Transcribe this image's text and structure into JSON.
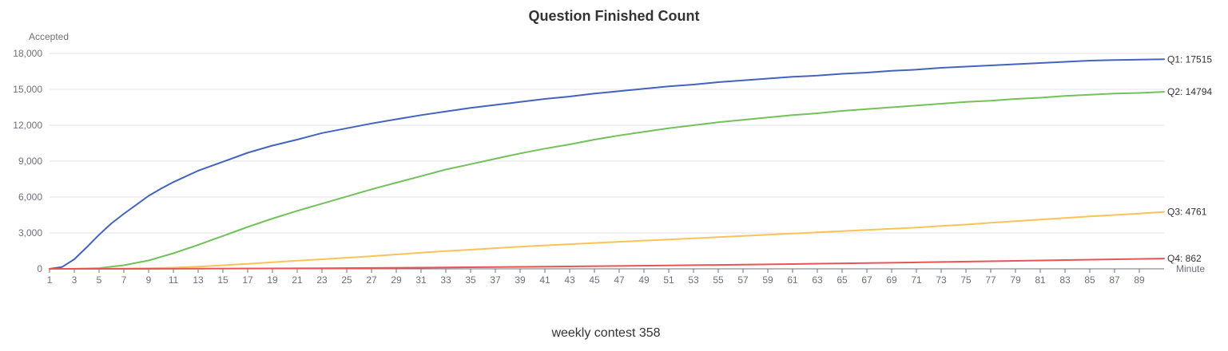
{
  "chart_data": {
    "type": "line",
    "title": "Question Finished Count",
    "ylabel": "Accepted",
    "xlabel": "Minute",
    "ylim": [
      0,
      18000
    ],
    "xlim": [
      1,
      91
    ],
    "y_ticks": [
      "0",
      "3,000",
      "6,000",
      "9,000",
      "12,000",
      "15,000",
      "18,000"
    ],
    "x_ticks": [
      "1",
      "3",
      "5",
      "7",
      "9",
      "11",
      "13",
      "15",
      "17",
      "19",
      "21",
      "23",
      "25",
      "27",
      "29",
      "31",
      "33",
      "35",
      "37",
      "39",
      "41",
      "43",
      "45",
      "47",
      "49",
      "51",
      "53",
      "55",
      "57",
      "59",
      "61",
      "63",
      "65",
      "67",
      "69",
      "71",
      "73",
      "75",
      "77",
      "79",
      "81",
      "83",
      "85",
      "87",
      "89"
    ],
    "grid": true,
    "series": [
      {
        "name": "Q1",
        "end_label": "Q1: 17515",
        "color": "#4363bf",
        "points": [
          [
            1,
            0
          ],
          [
            2,
            150
          ],
          [
            3,
            800
          ],
          [
            4,
            1800
          ],
          [
            5,
            2850
          ],
          [
            6,
            3800
          ],
          [
            7,
            4600
          ],
          [
            8,
            5350
          ],
          [
            9,
            6100
          ],
          [
            10,
            6700
          ],
          [
            11,
            7250
          ],
          [
            13,
            8200
          ],
          [
            15,
            8950
          ],
          [
            17,
            9700
          ],
          [
            19,
            10300
          ],
          [
            21,
            10800
          ],
          [
            23,
            11350
          ],
          [
            25,
            11750
          ],
          [
            27,
            12150
          ],
          [
            29,
            12500
          ],
          [
            31,
            12850
          ],
          [
            33,
            13150
          ],
          [
            35,
            13450
          ],
          [
            37,
            13700
          ],
          [
            39,
            13950
          ],
          [
            41,
            14200
          ],
          [
            43,
            14400
          ],
          [
            45,
            14650
          ],
          [
            47,
            14850
          ],
          [
            49,
            15050
          ],
          [
            51,
            15250
          ],
          [
            53,
            15400
          ],
          [
            55,
            15600
          ],
          [
            57,
            15750
          ],
          [
            59,
            15900
          ],
          [
            61,
            16050
          ],
          [
            63,
            16150
          ],
          [
            65,
            16300
          ],
          [
            67,
            16400
          ],
          [
            69,
            16550
          ],
          [
            71,
            16650
          ],
          [
            73,
            16800
          ],
          [
            75,
            16900
          ],
          [
            77,
            17000
          ],
          [
            79,
            17100
          ],
          [
            81,
            17200
          ],
          [
            83,
            17300
          ],
          [
            85,
            17400
          ],
          [
            87,
            17450
          ],
          [
            89,
            17480
          ],
          [
            91,
            17515
          ]
        ]
      },
      {
        "name": "Q2",
        "end_label": "Q2: 14794",
        "color": "#72c15b",
        "points": [
          [
            1,
            0
          ],
          [
            3,
            10
          ],
          [
            5,
            60
          ],
          [
            7,
            300
          ],
          [
            9,
            700
          ],
          [
            11,
            1300
          ],
          [
            13,
            2000
          ],
          [
            15,
            2750
          ],
          [
            17,
            3500
          ],
          [
            19,
            4200
          ],
          [
            21,
            4850
          ],
          [
            23,
            5450
          ],
          [
            25,
            6050
          ],
          [
            27,
            6650
          ],
          [
            29,
            7200
          ],
          [
            31,
            7750
          ],
          [
            33,
            8300
          ],
          [
            35,
            8750
          ],
          [
            37,
            9200
          ],
          [
            39,
            9650
          ],
          [
            41,
            10050
          ],
          [
            43,
            10400
          ],
          [
            45,
            10800
          ],
          [
            47,
            11150
          ],
          [
            49,
            11450
          ],
          [
            51,
            11750
          ],
          [
            53,
            12000
          ],
          [
            55,
            12250
          ],
          [
            57,
            12450
          ],
          [
            59,
            12650
          ],
          [
            61,
            12850
          ],
          [
            63,
            13000
          ],
          [
            65,
            13200
          ],
          [
            67,
            13350
          ],
          [
            69,
            13500
          ],
          [
            71,
            13650
          ],
          [
            73,
            13800
          ],
          [
            75,
            13950
          ],
          [
            77,
            14050
          ],
          [
            79,
            14200
          ],
          [
            81,
            14300
          ],
          [
            83,
            14450
          ],
          [
            85,
            14550
          ],
          [
            87,
            14650
          ],
          [
            89,
            14700
          ],
          [
            91,
            14794
          ]
        ]
      },
      {
        "name": "Q3",
        "end_label": "Q3: 4761",
        "color": "#f9c358",
        "points": [
          [
            1,
            0
          ],
          [
            5,
            5
          ],
          [
            9,
            50
          ],
          [
            11,
            100
          ],
          [
            13,
            180
          ],
          [
            15,
            300
          ],
          [
            17,
            420
          ],
          [
            19,
            550
          ],
          [
            21,
            680
          ],
          [
            23,
            800
          ],
          [
            25,
            930
          ],
          [
            27,
            1060
          ],
          [
            29,
            1200
          ],
          [
            31,
            1350
          ],
          [
            33,
            1480
          ],
          [
            35,
            1600
          ],
          [
            37,
            1730
          ],
          [
            39,
            1850
          ],
          [
            41,
            1960
          ],
          [
            43,
            2060
          ],
          [
            45,
            2160
          ],
          [
            47,
            2260
          ],
          [
            49,
            2360
          ],
          [
            51,
            2450
          ],
          [
            53,
            2550
          ],
          [
            55,
            2650
          ],
          [
            57,
            2750
          ],
          [
            59,
            2850
          ],
          [
            61,
            2950
          ],
          [
            63,
            3050
          ],
          [
            65,
            3150
          ],
          [
            67,
            3250
          ],
          [
            69,
            3350
          ],
          [
            71,
            3450
          ],
          [
            73,
            3580
          ],
          [
            75,
            3700
          ],
          [
            77,
            3850
          ],
          [
            79,
            3980
          ],
          [
            81,
            4120
          ],
          [
            83,
            4250
          ],
          [
            85,
            4380
          ],
          [
            87,
            4500
          ],
          [
            89,
            4620
          ],
          [
            91,
            4761
          ]
        ]
      },
      {
        "name": "Q4",
        "end_label": "Q4: 862",
        "color": "#ea5455",
        "points": [
          [
            1,
            0
          ],
          [
            11,
            5
          ],
          [
            21,
            40
          ],
          [
            31,
            100
          ],
          [
            41,
            180
          ],
          [
            51,
            280
          ],
          [
            61,
            400
          ],
          [
            71,
            540
          ],
          [
            81,
            700
          ],
          [
            91,
            862
          ]
        ]
      }
    ]
  },
  "caption": "weekly contest 358"
}
